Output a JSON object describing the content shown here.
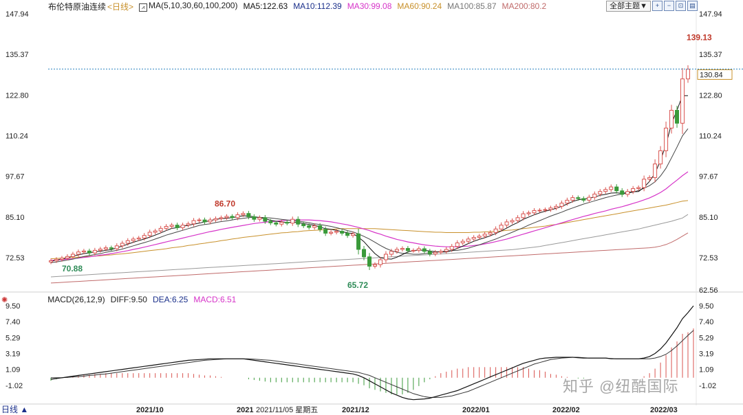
{
  "instrument": "布伦特原油连续",
  "period": "<日线>",
  "ma_legend": {
    "params": "MA(5,10,30,60,100,200)",
    "ma5": "MA5:122.63",
    "ma10": "MA10:112.39",
    "ma30": "MA30:99.08",
    "ma60": "MA60:90.24",
    "ma100": "MA100:85.87",
    "ma200": "MA200:80.2"
  },
  "theme_button": "全部主题▼",
  "icons": [
    "zoom-in-icon",
    "zoom-out-icon",
    "fit-icon",
    "export-icon"
  ],
  "macd_legend": {
    "params": "MACD(26,12,9)",
    "diff": "DIFF:9.50",
    "dea": "DEA:6.25",
    "macd": "MACD:6.51"
  },
  "current_price_label": "130.84",
  "annotations": {
    "high": "139.13",
    "mid_high": "86.70",
    "low1": "70.88",
    "low2": "65.72"
  },
  "x_labels": [
    "2021/10",
    "2021",
    "2021/11/05 星期五",
    "2021/12",
    "2022/01",
    "2022/02",
    "2022/03"
  ],
  "bottom_label": "日线 ▲",
  "watermark": "知乎 @纽酷国际",
  "colors": {
    "up": "#d9534f",
    "down": "#3a9a3a",
    "ma5": "#111111",
    "ma10": "#444444",
    "ma30": "#d633c8",
    "ma60": "#c8902a",
    "ma100": "#999999",
    "ma200": "#c06a6a",
    "price_line": "#2e86c1"
  },
  "chart_data": [
    {
      "type": "candlestick",
      "title": "布伦特原油连续",
      "y_ticks": [
        147.94,
        135.37,
        122.8,
        110.24,
        97.67,
        85.1,
        72.53
      ],
      "y_bottom_label": 62.56,
      "ylim": [
        62.56,
        147.94
      ],
      "current_price": 130.84,
      "period_labels": [
        "2021/10",
        "2021/11/05",
        "2021/12",
        "2022/01",
        "2022/02",
        "2022/03"
      ],
      "closes": [
        71.6,
        72.0,
        72.4,
        72.9,
        73.6,
        74.3,
        74.6,
        74.0,
        74.8,
        75.2,
        75.6,
        75.3,
        76.2,
        77.0,
        77.8,
        78.3,
        78.6,
        79.4,
        80.4,
        80.8,
        81.6,
        82.2,
        82.6,
        81.8,
        82.6,
        83.0,
        84.0,
        84.2,
        83.6,
        84.2,
        84.6,
        84.9,
        85.3,
        84.9,
        85.8,
        86.2,
        85.2,
        84.4,
        84.9,
        83.8,
        83.3,
        82.9,
        83.5,
        83.2,
        84.4,
        82.9,
        82.4,
        81.9,
        82.4,
        81.3,
        80.1,
        80.4,
        80.7,
        80.1,
        79.4,
        79.9,
        75.1,
        72.8,
        69.9,
        70.4,
        71.9,
        73.6,
        74.5,
        75.1,
        75.4,
        74.7,
        74.8,
        75.3,
        74.5,
        73.7,
        74.2,
        74.5,
        75.1,
        76.0,
        77.1,
        77.6,
        78.3,
        78.8,
        79.2,
        79.8,
        80.3,
        81.4,
        82.6,
        83.6,
        84.0,
        84.9,
        86.1,
        86.4,
        87.1,
        87.2,
        87.4,
        87.9,
        88.4,
        89.4,
        90.3,
        91.1,
        90.8,
        90.3,
        91.2,
        92.2,
        93.0,
        93.6,
        94.4,
        93.2,
        92.1,
        93.0,
        93.9,
        94.2,
        96.8,
        97.3,
        101.5,
        105.6,
        112.6,
        118.1,
        114.1,
        127.8,
        130.8
      ],
      "ma5": [
        71.4,
        71.8,
        72.1,
        72.5,
        73.0,
        73.4,
        73.8,
        74.0,
        74.4,
        74.5,
        74.8,
        75.0,
        75.6,
        76.1,
        76.7,
        77.3,
        77.8,
        78.3,
        78.9,
        79.5,
        80.2,
        80.9,
        81.6,
        81.8,
        82.3,
        82.5,
        82.9,
        83.2,
        83.6,
        84.0,
        84.4,
        84.6,
        84.7,
        84.9,
        85.2,
        85.5,
        85.4,
        85.2,
        84.9,
        84.6,
        84.1,
        83.8,
        83.6,
        83.4,
        83.5,
        83.4,
        83.1,
        82.8,
        82.6,
        82.0,
        81.5,
        81.3,
        81.0,
        80.6,
        80.2,
        80.0,
        78.9,
        77.5,
        75.6,
        73.8,
        72.5,
        72.2,
        72.1,
        72.7,
        73.5,
        74.3,
        74.7,
        74.9,
        74.8,
        74.6,
        74.4,
        74.3,
        74.3,
        74.7,
        75.4,
        76.1,
        76.9,
        77.6,
        78.2,
        78.7,
        79.3,
        80.0,
        80.8,
        81.7,
        82.6,
        83.4,
        84.4,
        85.1,
        85.8,
        86.4,
        86.9,
        87.3,
        87.8,
        88.4,
        89.1,
        89.9,
        90.4,
        90.7,
        90.9,
        91.3,
        91.8,
        92.1,
        92.5,
        92.6,
        92.4,
        92.7,
        92.9,
        93.0,
        94.3,
        96.1,
        98.6,
        102.6,
        107.5,
        114.0,
        118.1,
        122.6,
        122.6
      ],
      "ma10": [
        71.0,
        71.2,
        71.5,
        71.8,
        72.1,
        72.5,
        72.9,
        73.2,
        73.5,
        73.8,
        74.2,
        74.5,
        74.8,
        75.2,
        75.7,
        76.2,
        76.7,
        77.2,
        77.7,
        78.3,
        78.9,
        79.5,
        80.0,
        80.5,
        81.0,
        81.5,
        82.0,
        82.5,
        82.8,
        83.0,
        83.4,
        83.7,
        83.9,
        84.2,
        84.5,
        84.7,
        84.9,
        85.0,
        85.0,
        84.9,
        84.8,
        84.6,
        84.4,
        84.2,
        84.0,
        83.8,
        83.6,
        83.3,
        83.0,
        82.8,
        82.5,
        82.2,
        81.8,
        81.4,
        80.9,
        80.5,
        79.9,
        79.1,
        78.3,
        77.3,
        76.3,
        75.4,
        74.7,
        74.2,
        73.9,
        73.8,
        73.6,
        73.6,
        73.8,
        74.0,
        74.2,
        74.4,
        74.6,
        74.7,
        74.8,
        75.1,
        75.5,
        76.0,
        76.5,
        77.1,
        77.7,
        78.3,
        79.0,
        79.7,
        80.4,
        81.1,
        81.8,
        82.6,
        83.3,
        84.0,
        84.7,
        85.4,
        86.0,
        86.6,
        87.3,
        87.9,
        88.5,
        89.1,
        89.6,
        90.1,
        90.6,
        91.1,
        91.5,
        91.9,
        92.2,
        92.5,
        92.8,
        93.3,
        94.0,
        94.8,
        96.0,
        97.8,
        100.2,
        103.4,
        106.7,
        110.2,
        112.4
      ],
      "ma30": [
        71.7,
        71.8,
        71.9,
        72.1,
        72.2,
        72.4,
        72.6,
        72.8,
        73.0,
        73.3,
        73.5,
        73.8,
        74.1,
        74.4,
        74.7,
        75.1,
        75.4,
        75.8,
        76.2,
        76.6,
        77.0,
        77.4,
        77.8,
        78.2,
        78.6,
        79.0,
        79.4,
        79.8,
        80.2,
        80.6,
        80.9,
        81.3,
        81.6,
        81.9,
        82.2,
        82.5,
        82.8,
        83.1,
        83.3,
        83.5,
        83.7,
        83.8,
        84.0,
        84.1,
        84.2,
        84.2,
        84.2,
        84.2,
        84.1,
        84.0,
        83.8,
        83.6,
        83.3,
        83.0,
        82.7,
        82.3,
        81.9,
        81.4,
        80.9,
        80.3,
        79.8,
        79.2,
        78.7,
        78.2,
        77.8,
        77.4,
        77.1,
        76.8,
        76.5,
        76.3,
        76.1,
        76.0,
        75.9,
        75.9,
        75.9,
        76.0,
        76.1,
        76.3,
        76.5,
        76.8,
        77.1,
        77.5,
        77.9,
        78.3,
        78.8,
        79.3,
        79.8,
        80.3,
        80.8,
        81.3,
        81.8,
        82.3,
        82.8,
        83.3,
        83.8,
        84.3,
        84.8,
        85.3,
        85.7,
        86.2,
        86.6,
        87.0,
        87.5,
        87.9,
        88.3,
        88.8,
        89.3,
        89.8,
        90.4,
        91.0,
        91.8,
        92.7,
        93.8,
        95.2,
        96.5,
        97.9,
        99.1
      ],
      "ma60": [
        72.2,
        72.3,
        72.4,
        72.5,
        72.6,
        72.7,
        72.8,
        72.9,
        73.0,
        73.1,
        73.3,
        73.4,
        73.6,
        73.7,
        73.9,
        74.1,
        74.3,
        74.5,
        74.7,
        74.9,
        75.1,
        75.3,
        75.6,
        75.8,
        76.0,
        76.3,
        76.5,
        76.8,
        77.0,
        77.3,
        77.5,
        77.8,
        78.0,
        78.3,
        78.5,
        78.8,
        79.0,
        79.2,
        79.4,
        79.6,
        79.8,
        80.0,
        80.2,
        80.3,
        80.5,
        80.6,
        80.8,
        80.9,
        81.0,
        81.1,
        81.2,
        81.3,
        81.4,
        81.5,
        81.5,
        81.5,
        81.5,
        81.5,
        81.5,
        81.5,
        81.4,
        81.3,
        81.2,
        81.1,
        81.0,
        80.9,
        80.8,
        80.7,
        80.6,
        80.5,
        80.4,
        80.4,
        80.3,
        80.3,
        80.3,
        80.3,
        80.3,
        80.4,
        80.4,
        80.5,
        80.6,
        80.7,
        80.8,
        81.0,
        81.1,
        81.3,
        81.5,
        81.7,
        81.9,
        82.1,
        82.3,
        82.6,
        82.8,
        83.1,
        83.4,
        83.7,
        84.0,
        84.3,
        84.6,
        84.9,
        85.2,
        85.5,
        85.8,
        86.1,
        86.4,
        86.7,
        87.0,
        87.3,
        87.6,
        87.9,
        88.2,
        88.5,
        88.8,
        89.2,
        89.6,
        90.0,
        90.2
      ],
      "ma100": [
        66.6,
        66.7,
        66.8,
        66.9,
        67.0,
        67.1,
        67.2,
        67.3,
        67.4,
        67.5,
        67.6,
        67.7,
        67.8,
        67.9,
        68.0,
        68.1,
        68.2,
        68.3,
        68.4,
        68.5,
        68.6,
        68.7,
        68.8,
        68.9,
        69.0,
        69.1,
        69.2,
        69.3,
        69.4,
        69.5,
        69.6,
        69.7,
        69.8,
        69.9,
        70.0,
        70.1,
        70.2,
        70.3,
        70.4,
        70.5,
        70.6,
        70.7,
        70.8,
        70.9,
        71.0,
        71.1,
        71.2,
        71.3,
        71.4,
        71.5,
        71.6,
        71.7,
        71.8,
        71.9,
        72.0,
        72.1,
        72.2,
        72.3,
        72.4,
        72.5,
        72.6,
        72.7,
        72.8,
        72.9,
        73.0,
        73.1,
        73.2,
        73.3,
        73.4,
        73.5,
        73.6,
        73.7,
        73.8,
        73.9,
        74.0,
        74.1,
        74.2,
        74.3,
        74.4,
        74.5,
        74.6,
        74.7,
        74.8,
        74.9,
        75.0,
        75.2,
        75.4,
        75.6,
        75.8,
        76.0,
        76.3,
        76.6,
        76.9,
        77.2,
        77.5,
        77.8,
        78.1,
        78.4,
        78.7,
        79.0,
        79.3,
        79.6,
        79.9,
        80.2,
        80.5,
        80.8,
        81.1,
        81.4,
        81.8,
        82.2,
        82.6,
        83.0,
        83.4,
        83.8,
        84.3,
        84.8,
        85.9
      ],
      "ma200": [
        64.7,
        64.8,
        64.9,
        65.0,
        65.1,
        65.2,
        65.3,
        65.4,
        65.5,
        65.6,
        65.7,
        65.8,
        65.9,
        66.0,
        66.1,
        66.2,
        66.3,
        66.4,
        66.5,
        66.6,
        66.7,
        66.8,
        66.9,
        67.0,
        67.1,
        67.2,
        67.3,
        67.4,
        67.5,
        67.6,
        67.7,
        67.8,
        67.9,
        68.0,
        68.1,
        68.2,
        68.3,
        68.4,
        68.5,
        68.6,
        68.7,
        68.8,
        68.9,
        69.0,
        69.1,
        69.2,
        69.3,
        69.4,
        69.5,
        69.6,
        69.7,
        69.8,
        69.9,
        70.0,
        70.1,
        70.2,
        70.3,
        70.4,
        70.5,
        70.6,
        70.7,
        70.8,
        70.9,
        71.0,
        71.1,
        71.2,
        71.3,
        71.4,
        71.5,
        71.6,
        71.7,
        71.8,
        71.9,
        72.0,
        72.1,
        72.2,
        72.3,
        72.4,
        72.5,
        72.6,
        72.7,
        72.8,
        72.9,
        73.0,
        73.1,
        73.2,
        73.3,
        73.4,
        73.5,
        73.6,
        73.7,
        73.8,
        73.9,
        74.0,
        74.1,
        74.2,
        74.3,
        74.4,
        74.5,
        74.6,
        74.7,
        74.8,
        74.9,
        75.0,
        75.1,
        75.2,
        75.3,
        75.4,
        75.5,
        75.6,
        75.8,
        76.1,
        76.6,
        77.3,
        78.2,
        79.2,
        80.2
      ]
    },
    {
      "type": "macd",
      "title": "MACD(26,12,9)",
      "y_ticks": [
        9.5,
        7.4,
        5.29,
        3.19,
        1.09,
        -1.02
      ],
      "ylim": [
        -3.2,
        9.6
      ],
      "diff": [
        -0.2,
        -0.1,
        0.0,
        0.1,
        0.2,
        0.3,
        0.4,
        0.5,
        0.6,
        0.7,
        0.8,
        0.9,
        1.0,
        1.1,
        1.2,
        1.3,
        1.4,
        1.5,
        1.6,
        1.7,
        1.8,
        1.9,
        2.0,
        2.1,
        2.2,
        2.3,
        2.35,
        2.4,
        2.45,
        2.5,
        2.5,
        2.5,
        2.5,
        2.5,
        2.5,
        2.5,
        2.4,
        2.3,
        2.2,
        2.1,
        2.0,
        1.9,
        1.8,
        1.7,
        1.6,
        1.5,
        1.4,
        1.3,
        1.2,
        1.1,
        1.0,
        0.9,
        0.8,
        0.7,
        0.6,
        0.5,
        0.3,
        0.0,
        -0.4,
        -0.8,
        -1.2,
        -1.6,
        -2.0,
        -2.3,
        -2.6,
        -2.8,
        -2.9,
        -2.85,
        -2.8,
        -2.7,
        -2.5,
        -2.3,
        -2.1,
        -1.9,
        -1.7,
        -1.4,
        -1.1,
        -0.8,
        -0.5,
        -0.2,
        0.1,
        0.4,
        0.7,
        1.0,
        1.3,
        1.6,
        1.9,
        2.1,
        2.3,
        2.5,
        2.6,
        2.65,
        2.7,
        2.7,
        2.7,
        2.7,
        2.65,
        2.6,
        2.6,
        2.6,
        2.6,
        2.6,
        2.5,
        2.5,
        2.5,
        2.5,
        2.5,
        2.5,
        2.6,
        2.8,
        3.2,
        3.8,
        4.6,
        5.6,
        6.6,
        7.8,
        8.6,
        9.5
      ],
      "dea": [
        0.0,
        0.0,
        0.0,
        0.05,
        0.1,
        0.15,
        0.2,
        0.3,
        0.35,
        0.45,
        0.5,
        0.6,
        0.7,
        0.8,
        0.9,
        1.0,
        1.1,
        1.2,
        1.3,
        1.4,
        1.5,
        1.6,
        1.7,
        1.8,
        1.9,
        2.0,
        2.1,
        2.2,
        2.3,
        2.35,
        2.4,
        2.45,
        2.5,
        2.5,
        2.5,
        2.5,
        2.5,
        2.45,
        2.4,
        2.35,
        2.3,
        2.2,
        2.1,
        2.0,
        1.9,
        1.8,
        1.7,
        1.6,
        1.5,
        1.4,
        1.3,
        1.2,
        1.1,
        1.0,
        0.9,
        0.8,
        0.7,
        0.5,
        0.3,
        0.0,
        -0.3,
        -0.6,
        -0.9,
        -1.2,
        -1.5,
        -1.8,
        -2.1,
        -2.3,
        -2.5,
        -2.6,
        -2.6,
        -2.6,
        -2.5,
        -2.4,
        -2.2,
        -2.0,
        -1.8,
        -1.5,
        -1.2,
        -0.9,
        -0.6,
        -0.3,
        0.0,
        0.3,
        0.6,
        0.9,
        1.2,
        1.5,
        1.8,
        2.0,
        2.2,
        2.4,
        2.5,
        2.6,
        2.65,
        2.7,
        2.7,
        2.65,
        2.6,
        2.6,
        2.6,
        2.6,
        2.55,
        2.5,
        2.5,
        2.5,
        2.5,
        2.5,
        2.5,
        2.5,
        2.6,
        2.8,
        3.1,
        3.6,
        4.2,
        4.9,
        5.6,
        6.25
      ],
      "macd_hist": [
        -0.4,
        -0.2,
        0.0,
        0.1,
        0.2,
        0.3,
        0.4,
        0.4,
        0.5,
        0.5,
        0.6,
        0.6,
        0.6,
        0.6,
        0.6,
        0.6,
        0.6,
        0.6,
        0.6,
        0.6,
        0.6,
        0.6,
        0.6,
        0.6,
        0.6,
        0.6,
        0.5,
        0.4,
        0.3,
        0.3,
        0.2,
        0.1,
        0.0,
        0.0,
        0.0,
        0.0,
        -0.2,
        -0.3,
        -0.4,
        -0.5,
        -0.6,
        -0.6,
        -0.6,
        -0.6,
        -0.6,
        -0.6,
        -0.6,
        -0.6,
        -0.6,
        -0.6,
        -0.6,
        -0.6,
        -0.6,
        -0.6,
        -0.6,
        -0.6,
        -0.8,
        -1.0,
        -1.4,
        -1.6,
        -1.8,
        -2.0,
        -2.2,
        -2.2,
        -2.2,
        -2.0,
        -1.6,
        -1.1,
        -0.6,
        -0.2,
        0.2,
        0.6,
        0.8,
        1.0,
        1.2,
        1.2,
        1.4,
        1.4,
        1.4,
        1.4,
        1.4,
        1.4,
        1.4,
        1.4,
        1.4,
        1.4,
        1.4,
        1.2,
        1.0,
        1.0,
        0.8,
        0.5,
        0.4,
        0.2,
        0.1,
        0.0,
        -0.1,
        -0.1,
        0.0,
        0.0,
        0.0,
        0.0,
        0.0,
        0.0,
        0.0,
        0.0,
        0.0,
        0.0,
        0.2,
        0.6,
        1.2,
        2.0,
        3.0,
        4.0,
        4.8,
        5.8,
        6.0,
        6.51
      ]
    }
  ]
}
